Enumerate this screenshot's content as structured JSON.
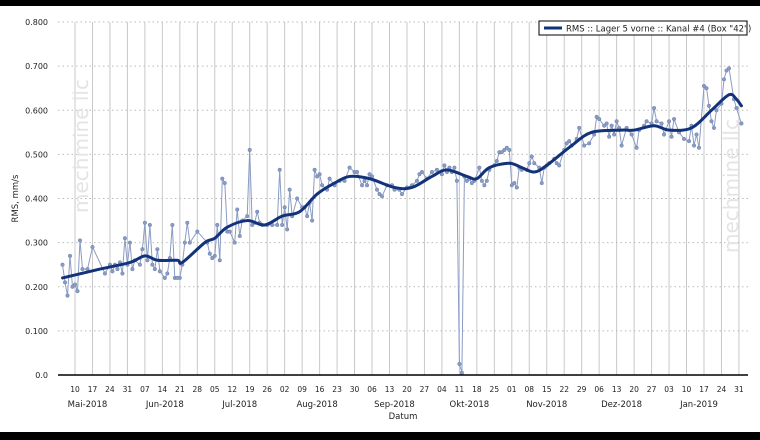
{
  "chart_data": {
    "type": "line",
    "title": "",
    "xlabel": "Datum",
    "ylabel": "RMS, mm/s",
    "ylim": [
      0,
      0.8
    ],
    "yticks": [
      "0.0",
      "0.100",
      "0.200",
      "0.300",
      "0.400",
      "0.500",
      "0.600",
      "0.700",
      "0.800"
    ],
    "xlim": [
      "2018-05-03",
      "2019-02-03"
    ],
    "xtick_days": [
      "10",
      "17",
      "24",
      "31",
      "07",
      "14",
      "21",
      "28",
      "05",
      "12",
      "19",
      "26",
      "02",
      "09",
      "16",
      "23",
      "30",
      "06",
      "13",
      "20",
      "27",
      "04",
      "11",
      "18",
      "25",
      "01",
      "08",
      "15",
      "22",
      "29",
      "06",
      "13",
      "20",
      "27",
      "03",
      "10",
      "17",
      "24",
      "31"
    ],
    "xtick_start": "2018-05-10",
    "month_labels": [
      "Mai-2018",
      "Jun-2018",
      "Jul-2018",
      "Aug-2018",
      "Sep-2018",
      "Okt-2018",
      "Nov-2018",
      "Dez-2018",
      "Jan-2019"
    ],
    "grid": {
      "x": "solid weekly",
      "y": "dotted"
    },
    "legend": {
      "position": "top-right",
      "entries": [
        "RMS :: Lager 5 vorne :: Kanal #4 (Box \"42\")"
      ]
    },
    "watermark": "mechmine llc",
    "colors": {
      "raw": "#8a9cc4",
      "smooth": "#12327a",
      "grid": "#c8c8c8"
    },
    "series": [
      {
        "name": "",
        "kind": "raw",
        "points": [
          [
            "2018-05-05",
            0.25
          ],
          [
            "2018-05-06",
            0.21
          ],
          [
            "2018-05-07",
            0.18
          ],
          [
            "2018-05-08",
            0.27
          ],
          [
            "2018-05-09",
            0.2
          ],
          [
            "2018-05-10",
            0.205
          ],
          [
            "2018-05-11",
            0.19
          ],
          [
            "2018-05-12",
            0.305
          ],
          [
            "2018-05-13",
            0.24
          ],
          [
            "2018-05-15",
            0.24
          ],
          [
            "2018-05-17",
            0.29
          ],
          [
            "2018-05-22",
            0.23
          ],
          [
            "2018-05-24",
            0.25
          ],
          [
            "2018-05-25",
            0.235
          ],
          [
            "2018-05-26",
            0.25
          ],
          [
            "2018-05-27",
            0.24
          ],
          [
            "2018-05-28",
            0.255
          ],
          [
            "2018-05-29",
            0.23
          ],
          [
            "2018-05-30",
            0.31
          ],
          [
            "2018-05-31",
            0.25
          ],
          [
            "2018-06-01",
            0.3
          ],
          [
            "2018-06-02",
            0.24
          ],
          [
            "2018-06-03",
            0.26
          ],
          [
            "2018-06-05",
            0.25
          ],
          [
            "2018-06-06",
            0.285
          ],
          [
            "2018-06-07",
            0.345
          ],
          [
            "2018-06-08",
            0.26
          ],
          [
            "2018-06-09",
            0.34
          ],
          [
            "2018-06-10",
            0.25
          ],
          [
            "2018-06-11",
            0.24
          ],
          [
            "2018-06-12",
            0.285
          ],
          [
            "2018-06-13",
            0.235
          ],
          [
            "2018-06-15",
            0.22
          ],
          [
            "2018-06-16",
            0.23
          ],
          [
            "2018-06-17",
            0.265
          ],
          [
            "2018-06-18",
            0.34
          ],
          [
            "2018-06-19",
            0.22
          ],
          [
            "2018-06-20",
            0.22
          ],
          [
            "2018-06-21",
            0.22
          ],
          [
            "2018-06-22",
            0.25
          ],
          [
            "2018-06-23",
            0.3
          ],
          [
            "2018-06-24",
            0.345
          ],
          [
            "2018-06-25",
            0.3
          ],
          [
            "2018-06-28",
            0.325
          ],
          [
            "2018-07-02",
            0.3
          ],
          [
            "2018-07-03",
            0.275
          ],
          [
            "2018-07-04",
            0.265
          ],
          [
            "2018-07-05",
            0.27
          ],
          [
            "2018-07-06",
            0.34
          ],
          [
            "2018-07-07",
            0.26
          ],
          [
            "2018-07-08",
            0.445
          ],
          [
            "2018-07-09",
            0.435
          ],
          [
            "2018-07-10",
            0.325
          ],
          [
            "2018-07-11",
            0.325
          ],
          [
            "2018-07-13",
            0.3
          ],
          [
            "2018-07-14",
            0.375
          ],
          [
            "2018-07-15",
            0.315
          ],
          [
            "2018-07-16",
            0.35
          ],
          [
            "2018-07-18",
            0.36
          ],
          [
            "2018-07-19",
            0.51
          ],
          [
            "2018-07-20",
            0.34
          ],
          [
            "2018-07-21",
            0.345
          ],
          [
            "2018-07-22",
            0.37
          ],
          [
            "2018-07-23",
            0.345
          ],
          [
            "2018-07-24",
            0.34
          ],
          [
            "2018-07-26",
            0.34
          ],
          [
            "2018-07-28",
            0.34
          ],
          [
            "2018-07-30",
            0.34
          ],
          [
            "2018-07-31",
            0.465
          ],
          [
            "2018-08-01",
            0.34
          ],
          [
            "2018-08-02",
            0.38
          ],
          [
            "2018-08-03",
            0.33
          ],
          [
            "2018-08-04",
            0.42
          ],
          [
            "2018-08-05",
            0.36
          ],
          [
            "2018-08-07",
            0.4
          ],
          [
            "2018-08-09",
            0.38
          ],
          [
            "2018-08-10",
            0.38
          ],
          [
            "2018-08-11",
            0.36
          ],
          [
            "2018-08-12",
            0.39
          ],
          [
            "2018-08-13",
            0.35
          ],
          [
            "2018-08-14",
            0.465
          ],
          [
            "2018-08-15",
            0.45
          ],
          [
            "2018-08-16",
            0.455
          ],
          [
            "2018-08-17",
            0.43
          ],
          [
            "2018-08-19",
            0.42
          ],
          [
            "2018-08-20",
            0.445
          ],
          [
            "2018-08-22",
            0.43
          ],
          [
            "2018-08-24",
            0.44
          ],
          [
            "2018-08-26",
            0.44
          ],
          [
            "2018-08-28",
            0.47
          ],
          [
            "2018-08-30",
            0.46
          ],
          [
            "2018-08-31",
            0.46
          ],
          [
            "2018-09-02",
            0.43
          ],
          [
            "2018-09-03",
            0.44
          ],
          [
            "2018-09-04",
            0.43
          ],
          [
            "2018-09-05",
            0.455
          ],
          [
            "2018-09-06",
            0.45
          ],
          [
            "2018-09-08",
            0.42
          ],
          [
            "2018-09-09",
            0.41
          ],
          [
            "2018-09-10",
            0.405
          ],
          [
            "2018-09-12",
            0.43
          ],
          [
            "2018-09-14",
            0.43
          ],
          [
            "2018-09-15",
            0.42
          ],
          [
            "2018-09-17",
            0.42
          ],
          [
            "2018-09-18",
            0.41
          ],
          [
            "2018-09-20",
            0.425
          ],
          [
            "2018-09-22",
            0.43
          ],
          [
            "2018-09-24",
            0.44
          ],
          [
            "2018-09-25",
            0.455
          ],
          [
            "2018-09-26",
            0.46
          ],
          [
            "2018-09-28",
            0.445
          ],
          [
            "2018-09-30",
            0.46
          ],
          [
            "2018-10-02",
            0.465
          ],
          [
            "2018-10-04",
            0.455
          ],
          [
            "2018-10-05",
            0.475
          ],
          [
            "2018-10-06",
            0.46
          ],
          [
            "2018-10-07",
            0.47
          ],
          [
            "2018-10-08",
            0.46
          ],
          [
            "2018-10-09",
            0.47
          ],
          [
            "2018-10-10",
            0.44
          ],
          [
            "2018-10-11",
            0.025
          ],
          [
            "2018-10-12",
            0.005
          ],
          [
            "2018-10-13",
            0.45
          ],
          [
            "2018-10-14",
            0.44
          ],
          [
            "2018-10-15",
            0.445
          ],
          [
            "2018-10-16",
            0.435
          ],
          [
            "2018-10-17",
            0.44
          ],
          [
            "2018-10-19",
            0.47
          ],
          [
            "2018-10-20",
            0.44
          ],
          [
            "2018-10-21",
            0.43
          ],
          [
            "2018-10-22",
            0.44
          ],
          [
            "2018-10-23",
            0.465
          ],
          [
            "2018-10-25",
            0.475
          ],
          [
            "2018-10-26",
            0.485
          ],
          [
            "2018-10-27",
            0.505
          ],
          [
            "2018-10-28",
            0.505
          ],
          [
            "2018-10-29",
            0.51
          ],
          [
            "2018-10-30",
            0.515
          ],
          [
            "2018-10-31",
            0.51
          ],
          [
            "2018-11-01",
            0.43
          ],
          [
            "2018-11-02",
            0.435
          ],
          [
            "2018-11-03",
            0.425
          ],
          [
            "2018-11-04",
            0.47
          ],
          [
            "2018-11-05",
            0.465
          ],
          [
            "2018-11-07",
            0.465
          ],
          [
            "2018-11-08",
            0.48
          ],
          [
            "2018-11-09",
            0.495
          ],
          [
            "2018-11-10",
            0.48
          ],
          [
            "2018-11-12",
            0.47
          ],
          [
            "2018-11-13",
            0.435
          ],
          [
            "2018-11-14",
            0.47
          ],
          [
            "2018-11-15",
            0.475
          ],
          [
            "2018-11-16",
            0.48
          ],
          [
            "2018-11-18",
            0.49
          ],
          [
            "2018-11-19",
            0.48
          ],
          [
            "2018-11-20",
            0.475
          ],
          [
            "2018-11-22",
            0.51
          ],
          [
            "2018-11-23",
            0.525
          ],
          [
            "2018-11-24",
            0.53
          ],
          [
            "2018-11-25",
            0.52
          ],
          [
            "2018-11-27",
            0.535
          ],
          [
            "2018-11-28",
            0.56
          ],
          [
            "2018-11-30",
            0.52
          ],
          [
            "2018-12-02",
            0.525
          ],
          [
            "2018-12-04",
            0.545
          ],
          [
            "2018-12-05",
            0.585
          ],
          [
            "2018-12-06",
            0.58
          ],
          [
            "2018-12-08",
            0.565
          ],
          [
            "2018-12-09",
            0.57
          ],
          [
            "2018-12-10",
            0.54
          ],
          [
            "2018-12-11",
            0.565
          ],
          [
            "2018-12-12",
            0.545
          ],
          [
            "2018-12-13",
            0.575
          ],
          [
            "2018-12-14",
            0.56
          ],
          [
            "2018-12-15",
            0.52
          ],
          [
            "2018-12-17",
            0.56
          ],
          [
            "2018-12-19",
            0.545
          ],
          [
            "2018-12-21",
            0.515
          ],
          [
            "2018-12-22",
            0.555
          ],
          [
            "2018-12-24",
            0.565
          ],
          [
            "2018-12-25",
            0.575
          ],
          [
            "2018-12-27",
            0.57
          ],
          [
            "2018-12-28",
            0.605
          ],
          [
            "2018-12-29",
            0.575
          ],
          [
            "2018-12-31",
            0.57
          ],
          [
            "2019-01-01",
            0.545
          ],
          [
            "2019-01-03",
            0.575
          ],
          [
            "2019-01-04",
            0.54
          ],
          [
            "2019-01-05",
            0.58
          ],
          [
            "2019-01-07",
            0.55
          ],
          [
            "2019-01-09",
            0.535
          ],
          [
            "2019-01-11",
            0.53
          ],
          [
            "2019-01-12",
            0.565
          ],
          [
            "2019-01-13",
            0.52
          ],
          [
            "2019-01-14",
            0.545
          ],
          [
            "2019-01-15",
            0.515
          ],
          [
            "2019-01-17",
            0.655
          ],
          [
            "2019-01-18",
            0.65
          ],
          [
            "2019-01-19",
            0.61
          ],
          [
            "2019-01-20",
            0.575
          ],
          [
            "2019-01-21",
            0.56
          ],
          [
            "2019-01-22",
            0.6
          ],
          [
            "2019-01-24",
            0.615
          ],
          [
            "2019-01-25",
            0.67
          ],
          [
            "2019-01-26",
            0.69
          ],
          [
            "2019-01-27",
            0.695
          ],
          [
            "2019-01-29",
            0.625
          ],
          [
            "2019-01-30",
            0.605
          ],
          [
            "2019-02-01",
            0.57
          ]
        ]
      },
      {
        "name": "RMS :: Lager 5 vorne :: Kanal #4 (Box \"42\")",
        "kind": "smooth",
        "points": [
          [
            "2018-05-05",
            0.22
          ],
          [
            "2018-05-20",
            0.24
          ],
          [
            "2018-06-01",
            0.255
          ],
          [
            "2018-06-07",
            0.27
          ],
          [
            "2018-06-12",
            0.26
          ],
          [
            "2018-06-20",
            0.26
          ],
          [
            "2018-06-22",
            0.255
          ],
          [
            "2018-07-01",
            0.3
          ],
          [
            "2018-07-05",
            0.31
          ],
          [
            "2018-07-10",
            0.335
          ],
          [
            "2018-07-18",
            0.35
          ],
          [
            "2018-07-25",
            0.34
          ],
          [
            "2018-08-01",
            0.36
          ],
          [
            "2018-08-08",
            0.37
          ],
          [
            "2018-08-15",
            0.41
          ],
          [
            "2018-08-22",
            0.435
          ],
          [
            "2018-08-28",
            0.45
          ],
          [
            "2018-09-05",
            0.445
          ],
          [
            "2018-09-15",
            0.425
          ],
          [
            "2018-09-22",
            0.425
          ],
          [
            "2018-09-30",
            0.45
          ],
          [
            "2018-10-06",
            0.465
          ],
          [
            "2018-10-14",
            0.45
          ],
          [
            "2018-10-18",
            0.445
          ],
          [
            "2018-10-23",
            0.47
          ],
          [
            "2018-10-31",
            0.48
          ],
          [
            "2018-11-05",
            0.47
          ],
          [
            "2018-11-10",
            0.46
          ],
          [
            "2018-11-15",
            0.475
          ],
          [
            "2018-11-25",
            0.52
          ],
          [
            "2018-12-03",
            0.55
          ],
          [
            "2018-12-15",
            0.555
          ],
          [
            "2018-12-20",
            0.555
          ],
          [
            "2018-12-28",
            0.565
          ],
          [
            "2019-01-03",
            0.555
          ],
          [
            "2019-01-12",
            0.56
          ],
          [
            "2019-01-20",
            0.6
          ],
          [
            "2019-01-27",
            0.635
          ],
          [
            "2019-01-30",
            0.625
          ],
          [
            "2019-02-01",
            0.61
          ]
        ]
      }
    ]
  }
}
